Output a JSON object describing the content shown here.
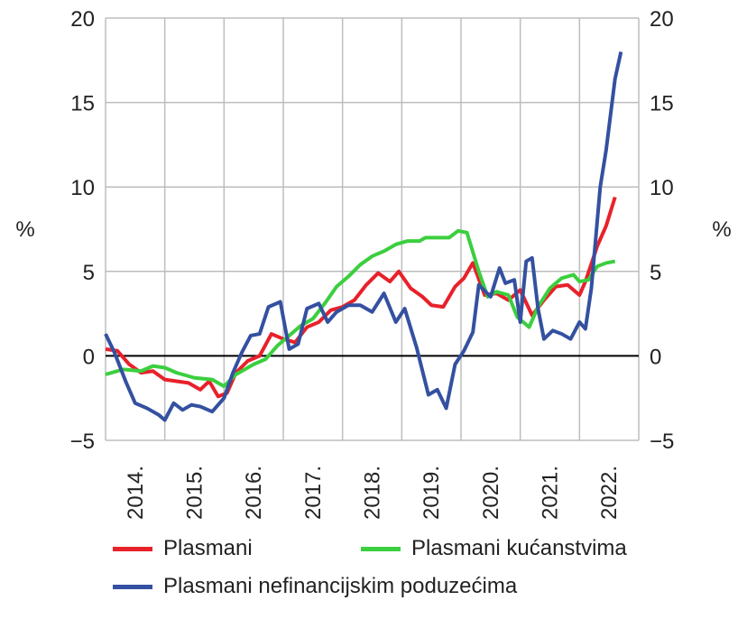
{
  "chart_data": {
    "type": "line",
    "ylabel_left": "%",
    "ylabel_right": "%",
    "ylim": [
      -5,
      20
    ],
    "yticks": [
      "−5",
      "0",
      "5",
      "10",
      "15",
      "20"
    ],
    "ytick_values": [
      -5,
      0,
      5,
      10,
      15,
      20
    ],
    "xlim": [
      2014,
      2023
    ],
    "xticks": [
      "2014.",
      "2015.",
      "2016.",
      "2017.",
      "2018.",
      "2019.",
      "2020.",
      "2021.",
      "2022."
    ],
    "grid": true,
    "legend_placement": "bottom",
    "series": [
      {
        "name": "Plasmani",
        "color": "#e8212a",
        "points": [
          [
            2014.0,
            0.4
          ],
          [
            2014.2,
            0.3
          ],
          [
            2014.4,
            -0.5
          ],
          [
            2014.6,
            -1.0
          ],
          [
            2014.8,
            -0.9
          ],
          [
            2015.0,
            -1.4
          ],
          [
            2015.2,
            -1.5
          ],
          [
            2015.4,
            -1.6
          ],
          [
            2015.6,
            -2.0
          ],
          [
            2015.75,
            -1.5
          ],
          [
            2015.9,
            -2.4
          ],
          [
            2016.05,
            -2.2
          ],
          [
            2016.2,
            -1.0
          ],
          [
            2016.4,
            -0.3
          ],
          [
            2016.6,
            0.0
          ],
          [
            2016.8,
            1.3
          ],
          [
            2017.0,
            1.0
          ],
          [
            2017.2,
            0.8
          ],
          [
            2017.4,
            1.7
          ],
          [
            2017.6,
            2.0
          ],
          [
            2017.8,
            2.7
          ],
          [
            2018.0,
            2.9
          ],
          [
            2018.2,
            3.3
          ],
          [
            2018.4,
            4.2
          ],
          [
            2018.6,
            4.9
          ],
          [
            2018.8,
            4.4
          ],
          [
            2018.95,
            5.0
          ],
          [
            2019.15,
            4.0
          ],
          [
            2019.35,
            3.5
          ],
          [
            2019.5,
            3.0
          ],
          [
            2019.7,
            2.9
          ],
          [
            2019.9,
            4.1
          ],
          [
            2020.05,
            4.6
          ],
          [
            2020.2,
            5.5
          ],
          [
            2020.4,
            3.6
          ],
          [
            2020.6,
            3.7
          ],
          [
            2020.8,
            3.3
          ],
          [
            2021.0,
            3.9
          ],
          [
            2021.2,
            2.4
          ],
          [
            2021.4,
            3.3
          ],
          [
            2021.6,
            4.1
          ],
          [
            2021.8,
            4.2
          ],
          [
            2022.0,
            3.6
          ],
          [
            2022.1,
            4.4
          ],
          [
            2022.3,
            6.5
          ],
          [
            2022.45,
            7.7
          ],
          [
            2022.6,
            9.4
          ]
        ]
      },
      {
        "name": "Plasmani kućanstvima",
        "color": "#3bcf3e",
        "points": [
          [
            2014.0,
            -1.1
          ],
          [
            2014.3,
            -0.8
          ],
          [
            2014.6,
            -0.9
          ],
          [
            2014.8,
            -0.6
          ],
          [
            2015.0,
            -0.7
          ],
          [
            2015.2,
            -1.0
          ],
          [
            2015.5,
            -1.3
          ],
          [
            2015.8,
            -1.4
          ],
          [
            2016.0,
            -1.8
          ],
          [
            2016.2,
            -1.1
          ],
          [
            2016.5,
            -0.5
          ],
          [
            2016.7,
            -0.2
          ],
          [
            2016.9,
            0.6
          ],
          [
            2017.1,
            1.2
          ],
          [
            2017.3,
            1.8
          ],
          [
            2017.5,
            2.2
          ],
          [
            2017.7,
            3.1
          ],
          [
            2017.9,
            4.1
          ],
          [
            2018.1,
            4.7
          ],
          [
            2018.3,
            5.4
          ],
          [
            2018.5,
            5.9
          ],
          [
            2018.7,
            6.2
          ],
          [
            2018.9,
            6.6
          ],
          [
            2019.1,
            6.8
          ],
          [
            2019.3,
            6.8
          ],
          [
            2019.4,
            7.0
          ],
          [
            2019.6,
            7.0
          ],
          [
            2019.8,
            7.0
          ],
          [
            2019.95,
            7.4
          ],
          [
            2020.1,
            7.3
          ],
          [
            2020.3,
            5.0
          ],
          [
            2020.45,
            3.5
          ],
          [
            2020.6,
            3.8
          ],
          [
            2020.8,
            3.6
          ],
          [
            2020.95,
            2.3
          ],
          [
            2021.15,
            1.7
          ],
          [
            2021.3,
            2.9
          ],
          [
            2021.5,
            4.0
          ],
          [
            2021.7,
            4.6
          ],
          [
            2021.9,
            4.8
          ],
          [
            2022.0,
            4.4
          ],
          [
            2022.15,
            4.5
          ],
          [
            2022.3,
            5.3
          ],
          [
            2022.45,
            5.5
          ],
          [
            2022.6,
            5.6
          ]
        ]
      },
      {
        "name": "Plasmani nefinancijskim poduzećima",
        "color": "#3450a0",
        "points": [
          [
            2014.0,
            1.3
          ],
          [
            2014.15,
            0.2
          ],
          [
            2014.35,
            -1.6
          ],
          [
            2014.5,
            -2.8
          ],
          [
            2014.7,
            -3.1
          ],
          [
            2014.9,
            -3.5
          ],
          [
            2015.0,
            -3.8
          ],
          [
            2015.15,
            -2.8
          ],
          [
            2015.3,
            -3.2
          ],
          [
            2015.45,
            -2.9
          ],
          [
            2015.6,
            -3.0
          ],
          [
            2015.8,
            -3.3
          ],
          [
            2016.0,
            -2.5
          ],
          [
            2016.15,
            -1.0
          ],
          [
            2016.3,
            0.2
          ],
          [
            2016.45,
            1.2
          ],
          [
            2016.6,
            1.3
          ],
          [
            2016.75,
            2.9
          ],
          [
            2016.95,
            3.2
          ],
          [
            2017.1,
            0.4
          ],
          [
            2017.25,
            0.7
          ],
          [
            2017.4,
            2.8
          ],
          [
            2017.6,
            3.1
          ],
          [
            2017.75,
            2.0
          ],
          [
            2017.9,
            2.6
          ],
          [
            2018.1,
            3.0
          ],
          [
            2018.3,
            3.0
          ],
          [
            2018.5,
            2.6
          ],
          [
            2018.7,
            3.7
          ],
          [
            2018.9,
            2.0
          ],
          [
            2019.05,
            2.8
          ],
          [
            2019.25,
            0.5
          ],
          [
            2019.45,
            -2.3
          ],
          [
            2019.6,
            -2.0
          ],
          [
            2019.75,
            -3.1
          ],
          [
            2019.9,
            -0.5
          ],
          [
            2020.05,
            0.3
          ],
          [
            2020.2,
            1.4
          ],
          [
            2020.3,
            4.2
          ],
          [
            2020.5,
            3.5
          ],
          [
            2020.65,
            5.2
          ],
          [
            2020.75,
            4.3
          ],
          [
            2020.9,
            4.5
          ],
          [
            2021.0,
            2.0
          ],
          [
            2021.1,
            5.6
          ],
          [
            2021.2,
            5.8
          ],
          [
            2021.3,
            2.8
          ],
          [
            2021.4,
            1.0
          ],
          [
            2021.55,
            1.5
          ],
          [
            2021.7,
            1.3
          ],
          [
            2021.85,
            1.0
          ],
          [
            2022.0,
            2.0
          ],
          [
            2022.1,
            1.6
          ],
          [
            2022.2,
            4.0
          ],
          [
            2022.35,
            10.0
          ],
          [
            2022.45,
            12.2
          ],
          [
            2022.6,
            16.4
          ],
          [
            2022.7,
            18.0
          ]
        ]
      }
    ]
  }
}
